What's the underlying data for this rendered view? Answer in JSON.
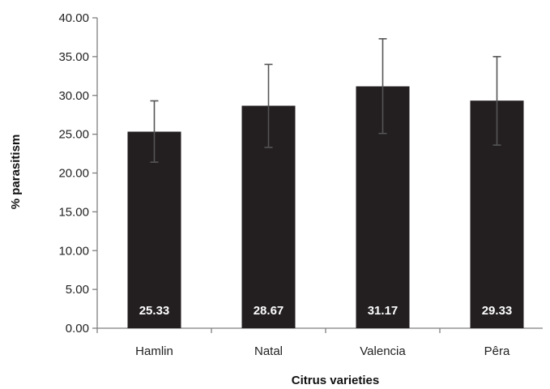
{
  "chart_data": {
    "type": "bar",
    "categories": [
      "Hamlin",
      "Natal",
      "Valencia",
      "Pêra"
    ],
    "values": [
      25.33,
      28.67,
      31.17,
      29.33
    ],
    "value_labels": [
      "25.33",
      "28.67",
      "31.17",
      "29.33"
    ],
    "error_low": [
      21.4,
      23.3,
      25.1,
      23.6
    ],
    "error_high": [
      29.3,
      34.0,
      37.3,
      35.0
    ],
    "ylim": [
      0,
      40
    ],
    "yticks": [
      0,
      5,
      10,
      15,
      20,
      25,
      30,
      35,
      40
    ],
    "ytick_labels": [
      "0.00",
      "5.00",
      "10.00",
      "15.00",
      "20.00",
      "25.00",
      "30.00",
      "35.00",
      "40.00"
    ],
    "xlabel": "Citrus varieties",
    "ylabel": "% parasitism",
    "title": "",
    "grid": false,
    "legend": "none",
    "colors": {
      "bar": "#231f20",
      "error_bar": "#555555",
      "axis": "#7f7f7f"
    }
  }
}
